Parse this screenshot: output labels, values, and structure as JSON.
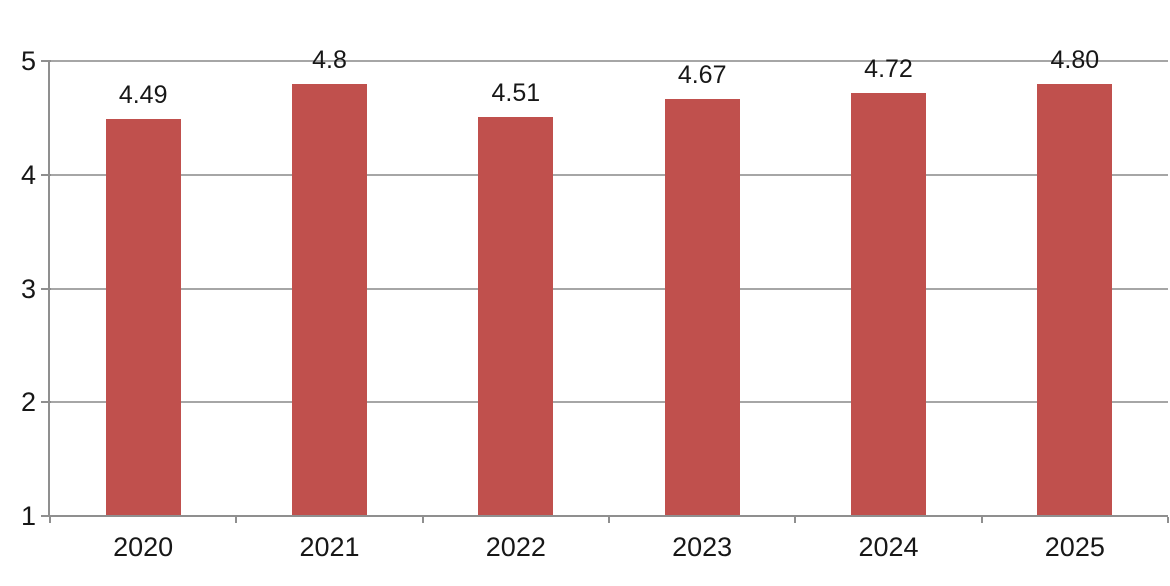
{
  "chart_data": {
    "type": "bar",
    "categories": [
      "2020",
      "2021",
      "2022",
      "2023",
      "2024",
      "2025"
    ],
    "values": [
      4.49,
      4.8,
      4.51,
      4.67,
      4.72,
      4.8
    ],
    "bar_value_labels": [
      "4.49",
      "4.8",
      "4.51",
      "4.67",
      "4.72",
      "4.80"
    ],
    "title": "",
    "xlabel": "",
    "ylabel": "",
    "ylim": [
      1,
      5
    ],
    "yticks": [
      1,
      2,
      3,
      4,
      5
    ],
    "ytick_labels": [
      "1",
      "2",
      "3",
      "4",
      "5"
    ],
    "grid": "horizontal",
    "legend": false,
    "colors": {
      "bar": "#C0504D",
      "gridline": "#A6A6A6",
      "axis": "#8F8F8F",
      "text": "#171717",
      "background": "#FFFFFF"
    }
  }
}
